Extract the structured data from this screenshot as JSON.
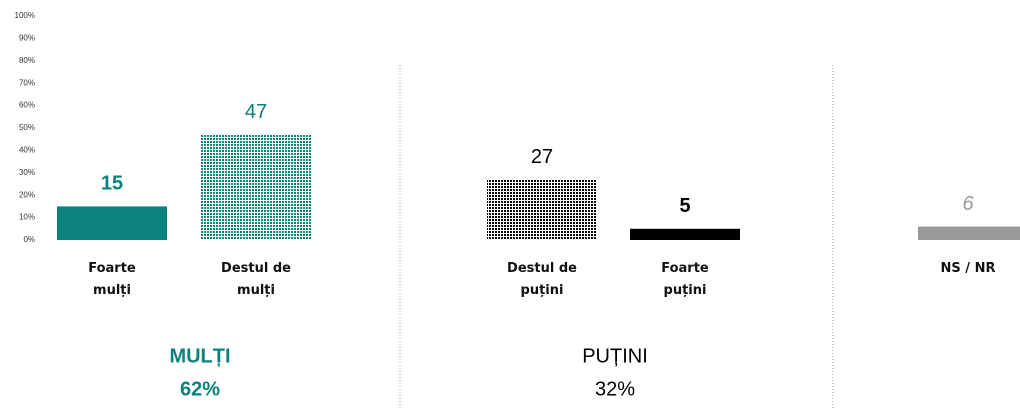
{
  "chart_data": {
    "type": "bar",
    "categories": [
      "Foarte mulți",
      "Destul de mulți",
      "Destul de puțini",
      "Foarte puțini",
      "NS / NR"
    ],
    "values": [
      15,
      47,
      27,
      5,
      6
    ],
    "colors": [
      "#0b827d",
      "#0b827d",
      "#000000",
      "#000000",
      "#999999"
    ],
    "patterns": [
      null,
      "dots",
      "dots",
      null,
      null
    ],
    "label_colors": [
      "#0b827d",
      "#0b827d",
      "#000000",
      "#000000",
      "#999999"
    ],
    "ylim": [
      0,
      100
    ],
    "yticks": [
      {
        "value": 0,
        "label": "0%"
      },
      {
        "value": 10,
        "label": "10%"
      },
      {
        "value": 20,
        "label": "20%"
      },
      {
        "value": 30,
        "label": "30%"
      },
      {
        "value": 40,
        "label": "40%"
      },
      {
        "value": 50,
        "label": "50%"
      },
      {
        "value": 60,
        "label": "60%"
      },
      {
        "value": 70,
        "label": "70%"
      },
      {
        "value": 80,
        "label": "80%"
      },
      {
        "value": 90,
        "label": "90%"
      },
      {
        "value": 100,
        "label": "100%"
      }
    ],
    "groups": [
      {
        "name": "MULȚI",
        "total": "62%",
        "color": "#0b827d"
      },
      {
        "name": "PUȚINI",
        "total": "32%",
        "color": "#000000"
      }
    ]
  }
}
